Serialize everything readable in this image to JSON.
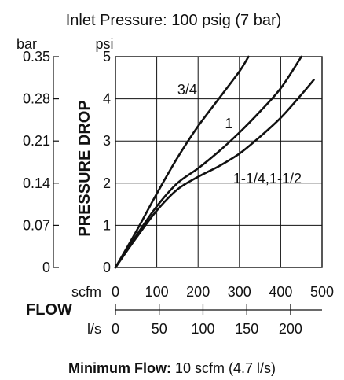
{
  "chart_data": {
    "type": "line",
    "title": "Inlet Pressure: 100 psig (7 bar)",
    "ylabel": "PRESSURE DROP",
    "xlabel": "FLOW",
    "y_unit_left": "bar",
    "y_unit_right": "psi",
    "x_unit_scfm": "scfm",
    "x_unit_ls": "l/s",
    "xlim": [
      0,
      500
    ],
    "ylim": [
      0,
      5
    ],
    "grid": true,
    "psi_ticks": [
      "0",
      "1",
      "2",
      "3",
      "4",
      "5"
    ],
    "bar_ticks": [
      "0",
      "0.07",
      "0.14",
      "0.21",
      "0.28",
      "0.35"
    ],
    "scfm_ticks": [
      "0",
      "100",
      "200",
      "300",
      "400",
      "500"
    ],
    "ls_ticks": [
      "0",
      "50",
      "100",
      "150",
      "200"
    ],
    "series": [
      {
        "name": "3/4",
        "x": [
          0,
          50,
          100,
          150,
          200,
          250,
          300,
          322
        ],
        "y": [
          0,
          0.85,
          1.75,
          2.6,
          3.35,
          4.0,
          4.65,
          5.0
        ]
      },
      {
        "name": "1",
        "x": [
          0,
          50,
          100,
          150,
          200,
          250,
          300,
          350,
          400,
          450
        ],
        "y": [
          0,
          0.75,
          1.45,
          2.0,
          2.35,
          2.75,
          3.2,
          3.7,
          4.25,
          5.0
        ]
      },
      {
        "name": "1-1/4,1-1/2",
        "x": [
          0,
          50,
          100,
          150,
          200,
          250,
          300,
          350,
          400,
          450,
          480
        ],
        "y": [
          0,
          0.7,
          1.35,
          1.85,
          2.15,
          2.4,
          2.7,
          3.1,
          3.55,
          4.1,
          4.45
        ]
      }
    ]
  },
  "footer": {
    "label": "Minimum Flow:",
    "value": "10 scfm (4.7 l/s)"
  }
}
